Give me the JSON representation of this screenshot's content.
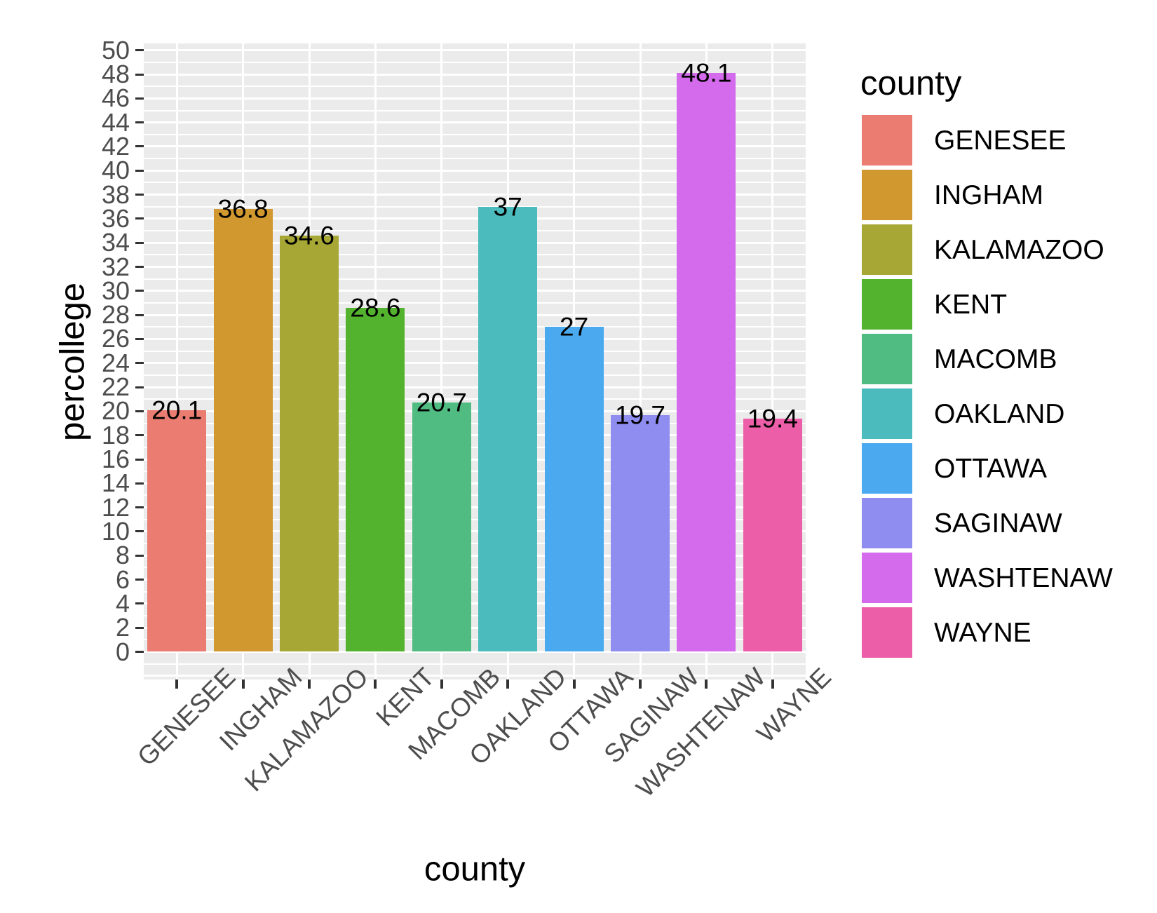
{
  "chart_data": {
    "type": "bar",
    "title": "",
    "xlabel": "county",
    "ylabel": "percollege",
    "categories": [
      "GENESEE",
      "INGHAM",
      "KALAMAZOO",
      "KENT",
      "MACOMB",
      "OAKLAND",
      "OTTAWA",
      "SAGINAW",
      "WASHTENAW",
      "WAYNE"
    ],
    "values": [
      20.1,
      36.8,
      34.6,
      28.6,
      20.7,
      37,
      27,
      19.7,
      48.1,
      19.4
    ],
    "value_labels": [
      "20.1",
      "36.8",
      "34.6",
      "28.6",
      "20.7",
      "37",
      "27",
      "19.7",
      "48.1",
      "19.4"
    ],
    "bar_colors": [
      "#EA7C71",
      "#D0982F",
      "#A7A735",
      "#53B32F",
      "#50BC82",
      "#4CBBBE",
      "#4AA9EF",
      "#8F8DEF",
      "#D46AEC",
      "#EC5FA8"
    ],
    "ylim": [
      0,
      50
    ],
    "ytick_step": 2,
    "yticks": [
      0,
      2,
      4,
      6,
      8,
      10,
      12,
      14,
      16,
      18,
      20,
      22,
      24,
      26,
      28,
      30,
      32,
      34,
      36,
      38,
      40,
      42,
      44,
      46,
      48,
      50
    ],
    "grid": "on",
    "panel_bg": "#EBEBEB",
    "grid_color": "#FFFFFF",
    "tick_color": "#333333",
    "tick_label_color": "#4D4D4D",
    "legend": {
      "position": "right",
      "title": "county",
      "entries": [
        "GENESEE",
        "INGHAM",
        "KALAMAZOO",
        "KENT",
        "MACOMB",
        "OAKLAND",
        "OTTAWA",
        "SAGINAW",
        "WASHTENAW",
        "WAYNE"
      ]
    }
  }
}
